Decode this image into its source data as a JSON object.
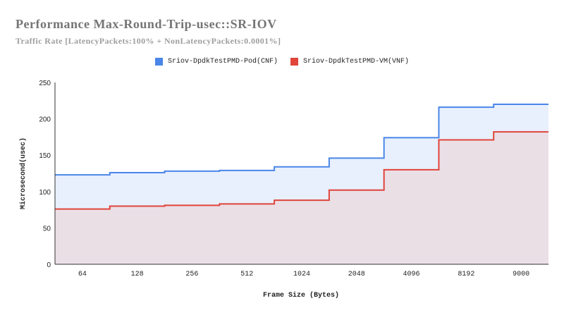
{
  "chart_data": {
    "type": "area",
    "subtype": "stepped",
    "title": "Performance Max-Round-Trip-usec::SR-IOV",
    "subtitle": "Traffic Rate [LatencyPackets:100% + NonLatencyPackets:0.0001%]",
    "xlabel": "Frame Size (Bytes)",
    "ylabel": "Microsecond(usec)",
    "categories": [
      "64",
      "128",
      "256",
      "512",
      "1024",
      "2048",
      "4096",
      "8192",
      "9000"
    ],
    "series": [
      {
        "name": "Sriov-DpdkTestPMD-Pod(CNF)",
        "color": "#4a86e8",
        "fill": "#e8f0fd",
        "values": [
          123,
          126,
          128,
          129,
          134,
          146,
          174,
          216,
          220
        ]
      },
      {
        "name": "Sriov-DpdkTestPMD-VM(VNF)",
        "color": "#e0443a",
        "fill": "#ebdfe6",
        "values": [
          76,
          80,
          81,
          83,
          88,
          102,
          130,
          171,
          182
        ]
      }
    ],
    "ylim": [
      0,
      250
    ],
    "yticks": [
      0,
      50,
      100,
      150,
      200,
      250
    ],
    "grid": false,
    "legend_position": "top"
  },
  "header": {
    "title": "Performance Max-Round-Trip-usec::SR-IOV",
    "subtitle": "Traffic Rate [LatencyPackets:100% + NonLatencyPackets:0.0001%]"
  },
  "legend": {
    "items": [
      {
        "label": "Sriov-DpdkTestPMD-Pod(CNF)",
        "color": "#4a86e8"
      },
      {
        "label": "Sriov-DpdkTestPMD-VM(VNF)",
        "color": "#e0443a"
      }
    ]
  }
}
